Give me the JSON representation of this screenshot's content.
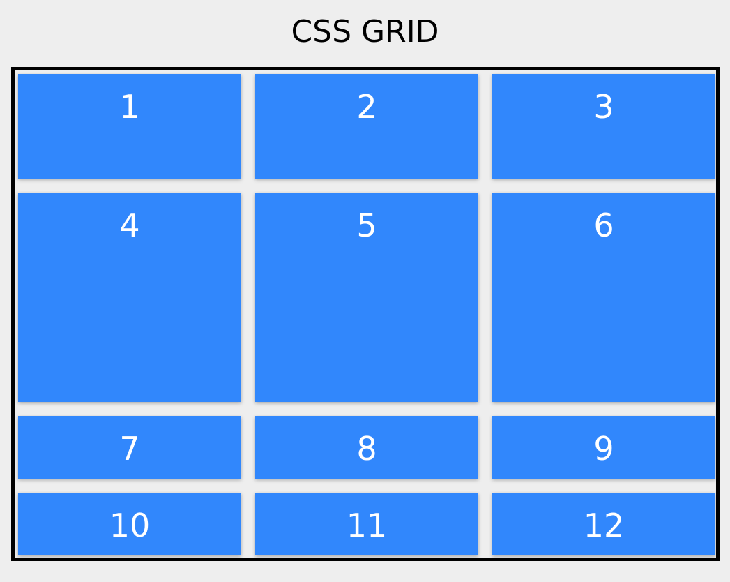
{
  "title": "CSS GRID",
  "colors": {
    "page_background": "#eeeeee",
    "cell_background": "#3187fc",
    "cell_text": "#ffffff",
    "border": "#000000"
  },
  "grid": {
    "items": [
      "1",
      "2",
      "3",
      "4",
      "5",
      "6",
      "7",
      "8",
      "9",
      "10",
      "11",
      "12"
    ]
  }
}
